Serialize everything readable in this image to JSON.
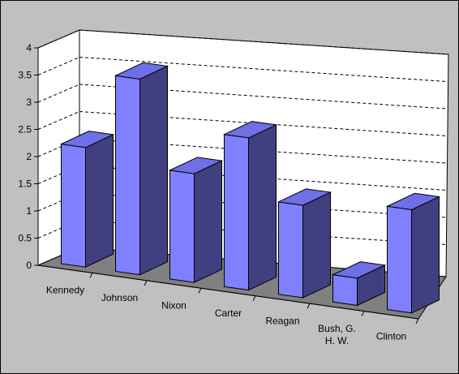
{
  "chart_data": {
    "type": "bar",
    "categories": [
      "Kennedy",
      "Johnson",
      "Nixon",
      "Carter",
      "Reagan",
      "Bush, G. H. W.",
      "Clinton"
    ],
    "category_lines": [
      [
        "Kennedy"
      ],
      [
        "Johnson"
      ],
      [
        "Nixon"
      ],
      [
        "Carter"
      ],
      [
        "Reagan"
      ],
      [
        "Bush, G.",
        "H. W."
      ],
      [
        "Clinton"
      ]
    ],
    "values": [
      2.2,
      3.6,
      2.0,
      2.8,
      1.7,
      0.5,
      1.9
    ],
    "yticks": [
      "0",
      "0.5",
      "1",
      "1.5",
      "2",
      "2.5",
      "3",
      "3.5",
      "4"
    ],
    "ylim": [
      0,
      4
    ],
    "grid": true,
    "title": "",
    "xlabel": "",
    "ylabel": "",
    "colors": {
      "background": "#c0c0c0",
      "wall": "#ffffff",
      "floor": "#808080",
      "bar_front": "#8080ff",
      "bar_side": "#404080",
      "bar_top": "#6f6fe8"
    }
  }
}
